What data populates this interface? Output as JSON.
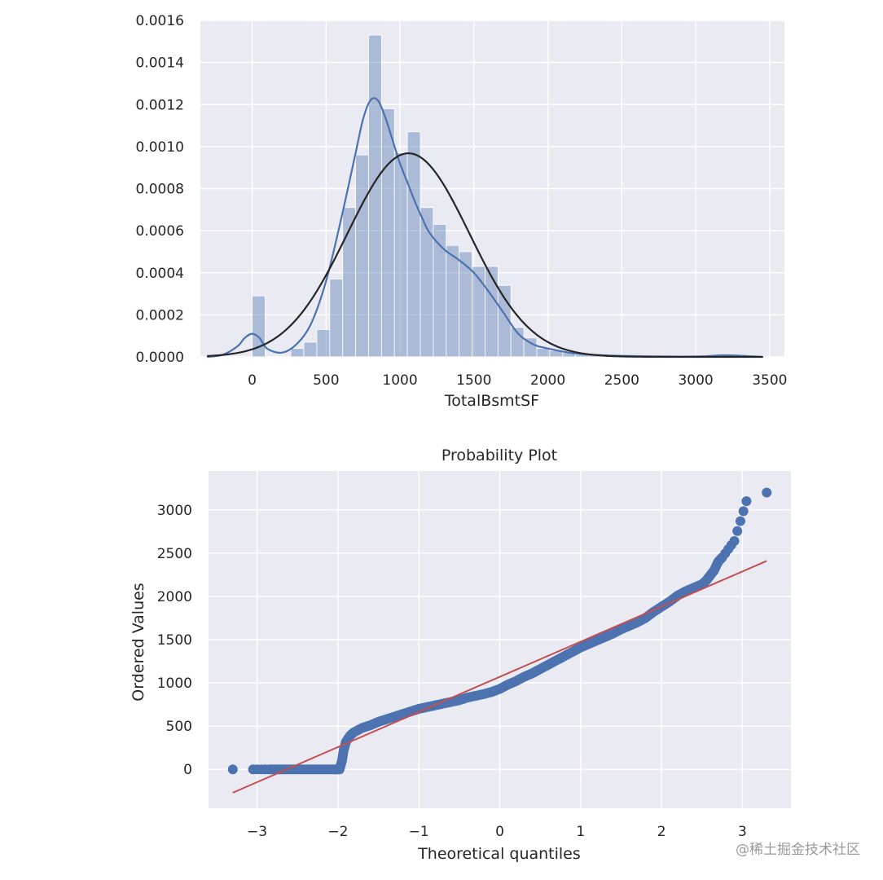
{
  "chart_data": [
    {
      "type": "histogram",
      "title": "",
      "xlabel": "TotalBsmtSF",
      "ylabel": "",
      "xlim": [
        -350,
        3600
      ],
      "ylim": [
        0,
        0.0016
      ],
      "grid": true,
      "xticks": [
        0,
        500,
        1000,
        1500,
        2000,
        2500,
        3000,
        3500
      ],
      "yticks": [
        0.0,
        0.0002,
        0.0004,
        0.0006,
        0.0008,
        0.001,
        0.0012,
        0.0014,
        0.0016
      ],
      "ytick_labels": [
        "0.0000",
        "0.0002",
        "0.0004",
        "0.0006",
        "0.0008",
        "0.0010",
        "0.0012",
        "0.0014",
        "0.0016"
      ],
      "bin_width": 87.5,
      "bins": [
        {
          "x0": 0,
          "density": 0.00029
        },
        {
          "x0": 262.5,
          "density": 4e-05
        },
        {
          "x0": 350,
          "density": 7e-05
        },
        {
          "x0": 437.5,
          "density": 0.00013
        },
        {
          "x0": 525,
          "density": 0.00037
        },
        {
          "x0": 612.5,
          "density": 0.00071
        },
        {
          "x0": 700,
          "density": 0.00096
        },
        {
          "x0": 787.5,
          "density": 0.00153
        },
        {
          "x0": 875,
          "density": 0.00118
        },
        {
          "x0": 962.5,
          "density": 0.00097
        },
        {
          "x0": 1050,
          "density": 0.00107
        },
        {
          "x0": 1137.5,
          "density": 0.00071
        },
        {
          "x0": 1225,
          "density": 0.00063
        },
        {
          "x0": 1312.5,
          "density": 0.00053
        },
        {
          "x0": 1400,
          "density": 0.0005
        },
        {
          "x0": 1487.5,
          "density": 0.00043
        },
        {
          "x0": 1575,
          "density": 0.00043
        },
        {
          "x0": 1662.5,
          "density": 0.00034
        },
        {
          "x0": 1750,
          "density": 0.00014
        },
        {
          "x0": 1837.5,
          "density": 9e-05
        },
        {
          "x0": 1925,
          "density": 4e-05
        },
        {
          "x0": 2012.5,
          "density": 3e-05
        },
        {
          "x0": 2100,
          "density": 2e-05
        },
        {
          "x0": 2187.5,
          "density": 1e-05
        },
        {
          "x0": 2275,
          "density": 1e-05
        },
        {
          "x0": 2362.5,
          "density": 5e-06
        },
        {
          "x0": 2450,
          "density": 5e-06
        },
        {
          "x0": 2537.5,
          "density": 3e-06
        },
        {
          "x0": 3150,
          "density": 5e-06
        }
      ],
      "series": [
        {
          "kind": "kde",
          "color": "#4c72b0",
          "x": [
            -300,
            -200,
            -100,
            -50,
            0,
            50,
            100,
            200,
            300,
            400,
            500,
            600,
            700,
            750,
            800,
            850,
            900,
            950,
            1000,
            1050,
            1100,
            1150,
            1200,
            1300,
            1400,
            1500,
            1600,
            1700,
            1800,
            1900,
            2000,
            2200,
            2500,
            3000,
            3200,
            3450
          ],
          "y": [
            0,
            1e-05,
            5e-05,
            9e-05,
            0.00011,
            9e-05,
            4e-05,
            2e-05,
            6e-05,
            0.00016,
            0.00036,
            0.00065,
            0.00097,
            0.00113,
            0.00122,
            0.00122,
            0.00114,
            0.00103,
            0.00092,
            0.00083,
            0.00074,
            0.00066,
            0.00059,
            0.00051,
            0.00046,
            0.0004,
            0.00031,
            0.00021,
            0.00011,
            6e-05,
            4e-05,
            1.5e-05,
            5e-06,
            2e-06,
            8e-06,
            0
          ]
        },
        {
          "kind": "normal_fit",
          "color": "#262626",
          "mu": 1057,
          "sigma": 412,
          "x_range": [
            -300,
            3450
          ]
        }
      ]
    },
    {
      "type": "scatter",
      "title": "Probability Plot",
      "xlabel": "Theoretical quantiles",
      "ylabel": "Ordered Values",
      "xlim": [
        -3.6,
        3.6
      ],
      "ylim": [
        -450,
        3450
      ],
      "grid": true,
      "xticks": [
        -3,
        -2,
        -1,
        0,
        1,
        2,
        3
      ],
      "xtick_labels": [
        "−3",
        "−2",
        "−1",
        "0",
        "1",
        "2",
        "3"
      ],
      "yticks": [
        0,
        500,
        1000,
        1500,
        2000,
        2500,
        3000
      ],
      "series": [
        {
          "kind": "points",
          "color": "#4c72b0",
          "x": [
            -3.3,
            -3.05,
            -2.85,
            -2.75,
            -2.65,
            -2.55,
            -2.45,
            -2.35,
            -2.25,
            -2.15,
            -2.05,
            -1.98,
            -1.95,
            -1.93,
            -1.9,
            -1.85,
            -1.8,
            -1.7,
            -1.6,
            -1.5,
            -1.4,
            -1.3,
            -1.2,
            -1.1,
            -1.0,
            -0.9,
            -0.8,
            -0.7,
            -0.6,
            -0.5,
            -0.4,
            -0.3,
            -0.2,
            -0.1,
            0.0,
            0.1,
            0.2,
            0.3,
            0.4,
            0.5,
            0.6,
            0.7,
            0.8,
            0.9,
            1.0,
            1.1,
            1.2,
            1.3,
            1.4,
            1.5,
            1.6,
            1.7,
            1.8,
            1.9,
            2.0,
            2.1,
            2.2,
            2.3,
            2.4,
            2.5,
            2.55,
            2.6,
            2.65,
            2.7,
            2.75,
            2.9,
            3.05,
            3.3
          ],
          "y": [
            0,
            0,
            0,
            0,
            0,
            0,
            0,
            0,
            0,
            0,
            0,
            0,
            100,
            220,
            320,
            390,
            430,
            480,
            510,
            550,
            580,
            610,
            640,
            670,
            700,
            720,
            740,
            760,
            780,
            800,
            830,
            850,
            870,
            895,
            930,
            980,
            1020,
            1070,
            1110,
            1160,
            1210,
            1260,
            1310,
            1360,
            1410,
            1450,
            1490,
            1530,
            1570,
            1620,
            1660,
            1700,
            1750,
            1820,
            1880,
            1940,
            2010,
            2060,
            2100,
            2140,
            2180,
            2240,
            2300,
            2400,
            2450,
            2640,
            3100,
            3200
          ]
        },
        {
          "kind": "fit_line",
          "color": "#c44e52",
          "x": [
            -3.3,
            3.3
          ],
          "y": [
            -270,
            2410
          ]
        }
      ]
    }
  ],
  "watermark": "@稀土掘金技术社区"
}
